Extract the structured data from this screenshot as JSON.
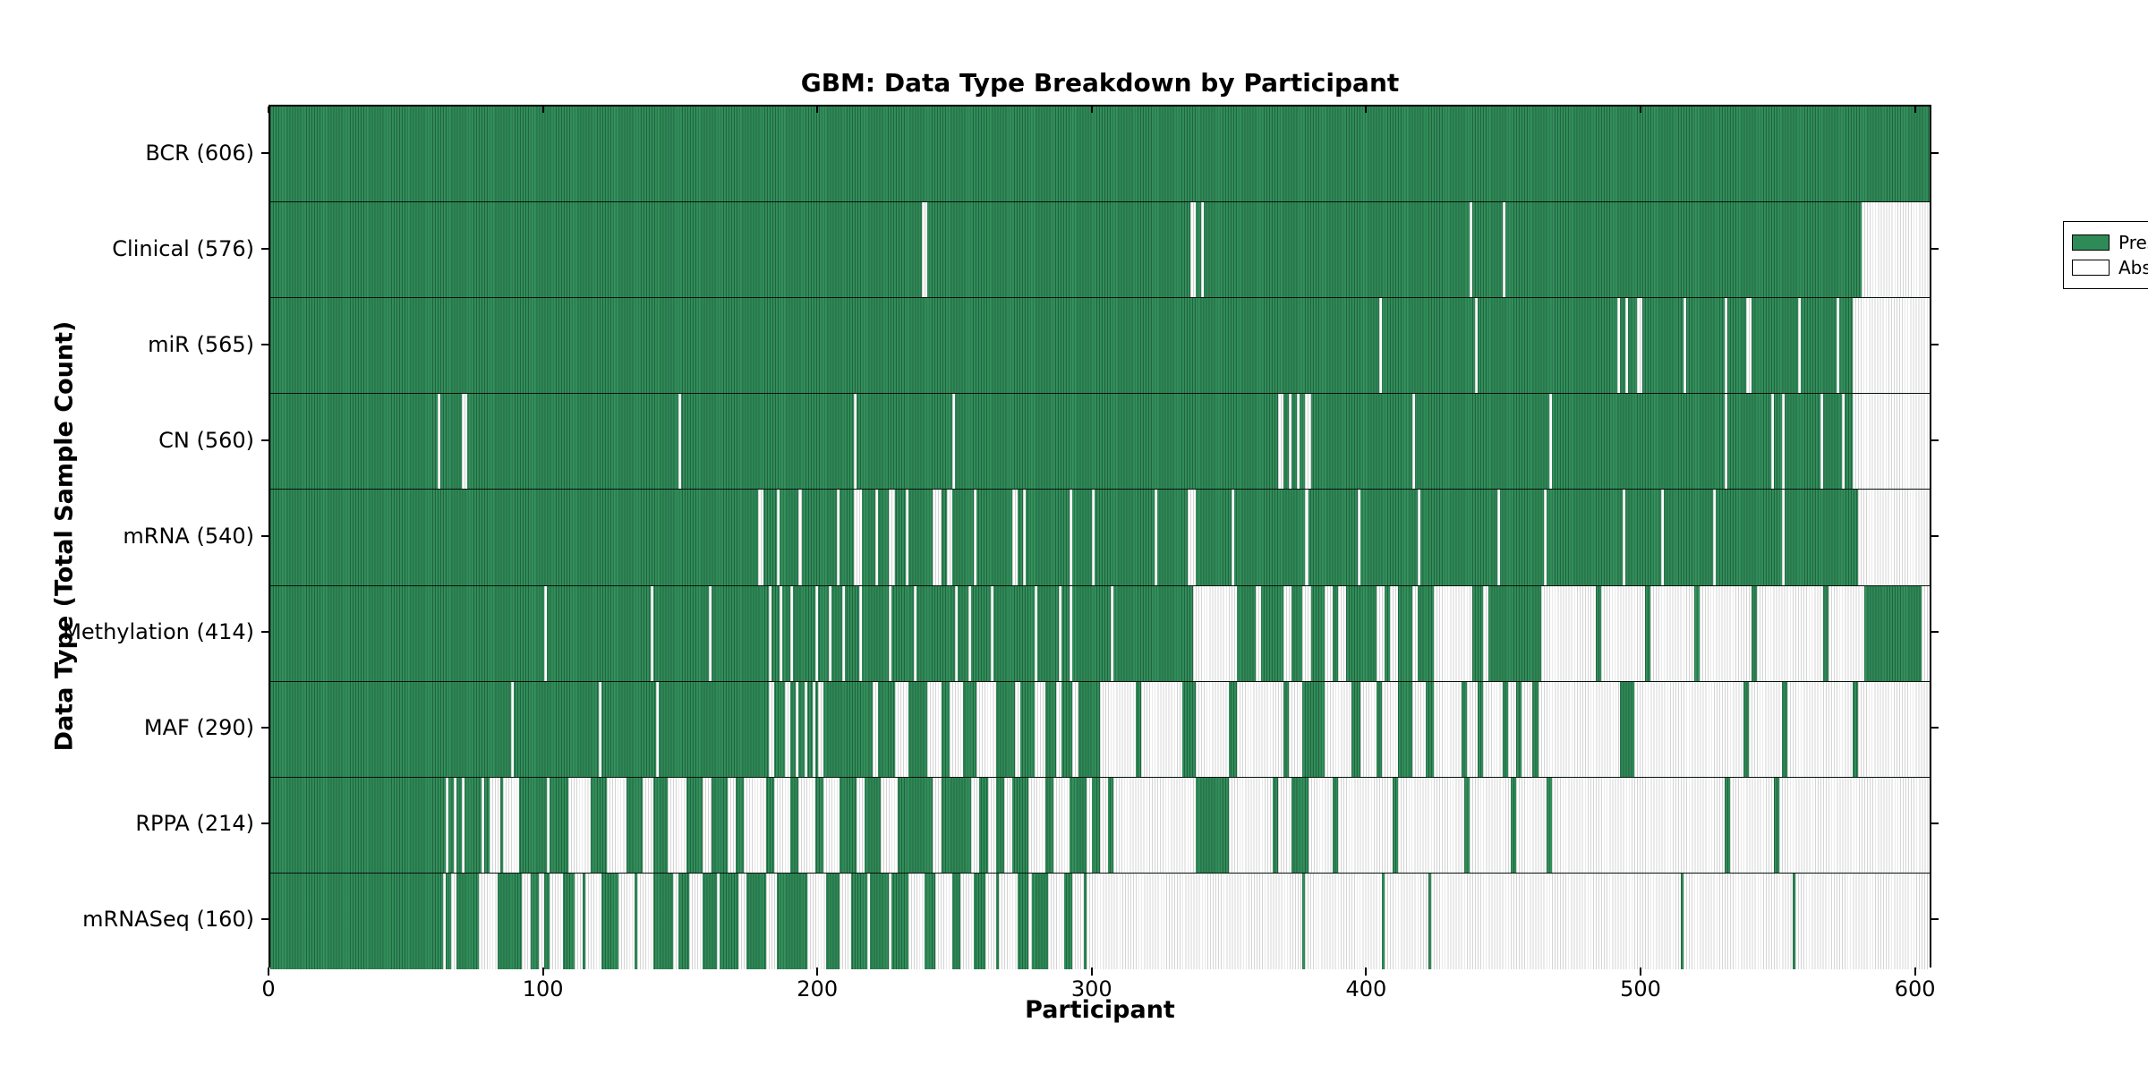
{
  "chart_data": {
    "type": "heatmap",
    "title": "GBM: Data Type Breakdown by Participant",
    "xlabel": "Participant",
    "ylabel": "Data Type (Total Sample Count)",
    "x_range": [
      0,
      606
    ],
    "x_ticks": [
      0,
      100,
      200,
      300,
      400,
      500,
      600
    ],
    "grid": false,
    "legend": {
      "position": "upper right",
      "present_label": "Present",
      "absent_label": "Absent"
    },
    "colors": {
      "present": "#2e8b57",
      "absent": "#ffffff",
      "edge": "#000000"
    },
    "rows": [
      {
        "label": "BCR (606)",
        "data_type": "BCR",
        "total_sample_count": 606,
        "absent_ranges": []
      },
      {
        "label": "Clinical (576)",
        "data_type": "Clinical",
        "total_sample_count": 576,
        "absent_ranges": [
          [
            238,
            240
          ],
          [
            336,
            338
          ],
          [
            340,
            341
          ],
          [
            438,
            439
          ],
          [
            450,
            451
          ],
          [
            581,
            606
          ]
        ]
      },
      {
        "label": "miR (565)",
        "data_type": "miR",
        "total_sample_count": 565,
        "absent_ranges": [
          [
            405,
            406
          ],
          [
            440,
            441
          ],
          [
            492,
            493
          ],
          [
            495,
            496
          ],
          [
            499,
            501
          ],
          [
            516,
            517
          ],
          [
            531,
            532
          ],
          [
            539,
            541
          ],
          [
            558,
            559
          ],
          [
            572,
            573
          ],
          [
            578,
            606
          ]
        ]
      },
      {
        "label": "CN (560)",
        "data_type": "CN",
        "total_sample_count": 560,
        "absent_ranges": [
          [
            61,
            62
          ],
          [
            70,
            72
          ],
          [
            149,
            150
          ],
          [
            213,
            214
          ],
          [
            249,
            250
          ],
          [
            368,
            370
          ],
          [
            372,
            373
          ],
          [
            375,
            376
          ],
          [
            378,
            380
          ],
          [
            417,
            418
          ],
          [
            467,
            468
          ],
          [
            531,
            532
          ],
          [
            548,
            549
          ],
          [
            552,
            553
          ],
          [
            566,
            567
          ],
          [
            574,
            575
          ],
          [
            578,
            606
          ]
        ]
      },
      {
        "label": "mRNA (540)",
        "data_type": "mRNA",
        "total_sample_count": 540,
        "absent_ranges": [
          [
            178,
            180
          ],
          [
            185,
            186
          ],
          [
            193,
            194
          ],
          [
            207,
            208
          ],
          [
            213,
            216
          ],
          [
            221,
            222
          ],
          [
            226,
            228
          ],
          [
            232,
            233
          ],
          [
            242,
            245
          ],
          [
            247,
            249
          ],
          [
            257,
            258
          ],
          [
            271,
            273
          ],
          [
            275,
            276
          ],
          [
            292,
            293
          ],
          [
            300,
            301
          ],
          [
            323,
            324
          ],
          [
            335,
            338
          ],
          [
            351,
            352
          ],
          [
            378,
            379
          ],
          [
            397,
            398
          ],
          [
            419,
            420
          ],
          [
            448,
            449
          ],
          [
            465,
            466
          ],
          [
            494,
            495
          ],
          [
            508,
            509
          ],
          [
            527,
            528
          ],
          [
            552,
            553
          ],
          [
            580,
            606
          ]
        ]
      },
      {
        "label": "Methylation (414)",
        "data_type": "Methylation",
        "total_sample_count": 414,
        "absent_ranges": [
          [
            100,
            101
          ],
          [
            139,
            140
          ],
          [
            160,
            161
          ],
          [
            182,
            183
          ],
          [
            186,
            187
          ],
          [
            190,
            191
          ],
          [
            199,
            200
          ],
          [
            204,
            205
          ],
          [
            209,
            210
          ],
          [
            215,
            216
          ],
          [
            226,
            227
          ],
          [
            235,
            236
          ],
          [
            250,
            251
          ],
          [
            255,
            256
          ],
          [
            263,
            264
          ],
          [
            279,
            280
          ],
          [
            288,
            289
          ],
          [
            292,
            293
          ],
          [
            307,
            308
          ],
          [
            337,
            353
          ],
          [
            360,
            362
          ],
          [
            370,
            373
          ],
          [
            377,
            380
          ],
          [
            385,
            388
          ],
          [
            390,
            393
          ],
          [
            404,
            407
          ],
          [
            409,
            412
          ],
          [
            417,
            419
          ],
          [
            425,
            439
          ],
          [
            443,
            445
          ],
          [
            464,
            484
          ],
          [
            486,
            502
          ],
          [
            504,
            520
          ],
          [
            522,
            541
          ],
          [
            543,
            567
          ],
          [
            569,
            582
          ],
          [
            603,
            606
          ]
        ]
      },
      {
        "label": "MAF (290)",
        "data_type": "MAF",
        "total_sample_count": 290,
        "absent_ranges": [
          [
            88,
            89
          ],
          [
            120,
            121
          ],
          [
            141,
            142
          ],
          [
            182,
            184
          ],
          [
            188,
            190
          ],
          [
            192,
            193
          ],
          [
            195,
            196
          ],
          [
            198,
            199
          ],
          [
            200,
            202
          ],
          [
            220,
            222
          ],
          [
            228,
            233
          ],
          [
            240,
            245
          ],
          [
            248,
            253
          ],
          [
            258,
            265
          ],
          [
            272,
            274
          ],
          [
            279,
            283
          ],
          [
            287,
            289
          ],
          [
            293,
            295
          ],
          [
            303,
            316
          ],
          [
            318,
            333
          ],
          [
            338,
            350
          ],
          [
            353,
            370
          ],
          [
            372,
            377
          ],
          [
            385,
            395
          ],
          [
            398,
            404
          ],
          [
            406,
            412
          ],
          [
            417,
            422
          ],
          [
            425,
            435
          ],
          [
            437,
            441
          ],
          [
            443,
            450
          ],
          [
            452,
            455
          ],
          [
            457,
            461
          ],
          [
            463,
            493
          ],
          [
            498,
            538
          ],
          [
            540,
            552
          ],
          [
            554,
            578
          ],
          [
            580,
            606
          ]
        ]
      },
      {
        "label": "RPPA (214)",
        "data_type": "RPPA",
        "total_sample_count": 214,
        "absent_ranges": [
          [
            64,
            65
          ],
          [
            67,
            68
          ],
          [
            70,
            71
          ],
          [
            77,
            78
          ],
          [
            80,
            84
          ],
          [
            85,
            91
          ],
          [
            101,
            102
          ],
          [
            109,
            117
          ],
          [
            123,
            130
          ],
          [
            136,
            140
          ],
          [
            145,
            152
          ],
          [
            158,
            161
          ],
          [
            167,
            170
          ],
          [
            173,
            181
          ],
          [
            184,
            190
          ],
          [
            193,
            199
          ],
          [
            202,
            208
          ],
          [
            214,
            217
          ],
          [
            223,
            229
          ],
          [
            242,
            245
          ],
          [
            256,
            259
          ],
          [
            262,
            265
          ],
          [
            268,
            271
          ],
          [
            277,
            283
          ],
          [
            286,
            292
          ],
          [
            298,
            300
          ],
          [
            303,
            306
          ],
          [
            308,
            338
          ],
          [
            350,
            366
          ],
          [
            368,
            373
          ],
          [
            379,
            388
          ],
          [
            390,
            410
          ],
          [
            412,
            436
          ],
          [
            438,
            453
          ],
          [
            455,
            466
          ],
          [
            468,
            531
          ],
          [
            533,
            549
          ],
          [
            551,
            606
          ]
        ]
      },
      {
        "label": "mRNASeq (160)",
        "data_type": "mRNASeq",
        "total_sample_count": 160,
        "absent_ranges": [
          [
            63,
            64
          ],
          [
            66,
            68
          ],
          [
            76,
            83
          ],
          [
            92,
            95
          ],
          [
            98,
            100
          ],
          [
            102,
            107
          ],
          [
            111,
            114
          ],
          [
            115,
            121
          ],
          [
            127,
            133
          ],
          [
            134,
            140
          ],
          [
            147,
            149
          ],
          [
            153,
            158
          ],
          [
            163,
            164
          ],
          [
            171,
            174
          ],
          [
            181,
            185
          ],
          [
            196,
            203
          ],
          [
            208,
            212
          ],
          [
            218,
            219
          ],
          [
            226,
            227
          ],
          [
            233,
            239
          ],
          [
            243,
            249
          ],
          [
            252,
            257
          ],
          [
            261,
            265
          ],
          [
            266,
            273
          ],
          [
            277,
            278
          ],
          [
            284,
            290
          ],
          [
            293,
            297
          ],
          [
            298,
            377
          ],
          [
            378,
            406
          ],
          [
            407,
            423
          ],
          [
            424,
            515
          ],
          [
            516,
            556
          ],
          [
            557,
            606
          ]
        ]
      }
    ]
  }
}
